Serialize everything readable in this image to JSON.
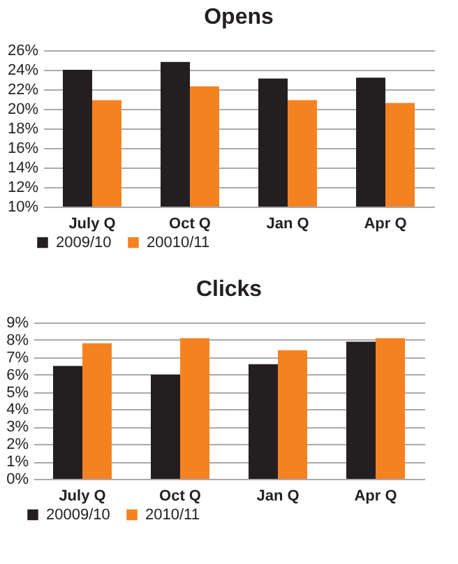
{
  "chart_data": [
    {
      "type": "bar",
      "title": "Opens",
      "categories": [
        "July Q",
        "Oct Q",
        "Jan Q",
        "Apr Q"
      ],
      "series": [
        {
          "name": "2009/10",
          "color": "#231f20",
          "values": [
            24.0,
            24.8,
            23.1,
            23.2
          ]
        },
        {
          "name": "20010/11",
          "color": "#f58220",
          "values": [
            20.9,
            22.3,
            20.9,
            20.6
          ]
        }
      ],
      "ylim": [
        10,
        26
      ],
      "yticks": [
        {
          "value": 10,
          "label": "10%"
        },
        {
          "value": 12,
          "label": "12%"
        },
        {
          "value": 14,
          "label": "14%"
        },
        {
          "value": 16,
          "label": "16%"
        },
        {
          "value": 18,
          "label": "18%"
        },
        {
          "value": 20,
          "label": "20%"
        },
        {
          "value": 22,
          "label": "22%"
        },
        {
          "value": 24,
          "label": "24%"
        },
        {
          "value": 26,
          "label": "26%"
        }
      ],
      "grid": "y",
      "legend": "bottom left"
    },
    {
      "type": "bar",
      "title": "Clicks",
      "categories": [
        "July Q",
        "Oct Q",
        "Jan Q",
        "Apr Q"
      ],
      "series": [
        {
          "name": "20009/10",
          "color": "#231f20",
          "values": [
            6.5,
            6.0,
            6.6,
            7.9
          ]
        },
        {
          "name": "2010/11",
          "color": "#f58220",
          "values": [
            7.8,
            8.1,
            7.4,
            8.1
          ]
        }
      ],
      "ylim": [
        0,
        9
      ],
      "yticks": [
        {
          "value": 0,
          "label": "0%"
        },
        {
          "value": 1,
          "label": "1%"
        },
        {
          "value": 2,
          "label": "2%"
        },
        {
          "value": 3,
          "label": "3%"
        },
        {
          "value": 4,
          "label": "4%"
        },
        {
          "value": 5,
          "label": "5%"
        },
        {
          "value": 6,
          "label": "6%"
        },
        {
          "value": 7,
          "label": "7%"
        },
        {
          "value": 8,
          "label": "8%"
        },
        {
          "value": 9,
          "label": "9%"
        }
      ],
      "grid": "y",
      "legend": "bottom left"
    }
  ]
}
